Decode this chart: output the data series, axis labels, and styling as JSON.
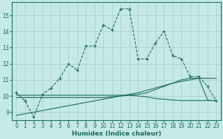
{
  "title": "",
  "xlabel": "Humidex (Indice chaleur)",
  "background_color": "#c5e8e8",
  "grid_color": "#aed4d4",
  "line_color": "#1a6b5a",
  "x_ticks": [
    0,
    1,
    2,
    3,
    4,
    5,
    6,
    7,
    8,
    9,
    10,
    11,
    12,
    13,
    14,
    15,
    16,
    17,
    18,
    19,
    20,
    21,
    22,
    23
  ],
  "y_ticks": [
    9,
    10,
    11,
    12,
    13,
    14,
    15
  ],
  "ylim": [
    8.5,
    15.8
  ],
  "xlim": [
    -0.5,
    23.5
  ],
  "series1_x": [
    0,
    1,
    2,
    3,
    4,
    5,
    6,
    7,
    8,
    9,
    10,
    11,
    12,
    13,
    14,
    15,
    16,
    17,
    18,
    19,
    20,
    21,
    22,
    23
  ],
  "series1_y": [
    10.2,
    9.7,
    8.7,
    10.1,
    10.5,
    11.1,
    12.0,
    11.6,
    13.1,
    13.1,
    14.4,
    14.1,
    15.4,
    15.4,
    12.3,
    12.3,
    13.3,
    14.0,
    12.5,
    12.3,
    11.2,
    11.2,
    10.6,
    9.7
  ],
  "series2_x": [
    0,
    1,
    2,
    3,
    4,
    5,
    6,
    7,
    8,
    9,
    10,
    11,
    12,
    13,
    14,
    15,
    16,
    17,
    18,
    19,
    20,
    21,
    22,
    23
  ],
  "series2_y": [
    10.05,
    10.05,
    10.05,
    10.05,
    10.05,
    10.05,
    10.05,
    10.05,
    10.05,
    10.05,
    10.05,
    10.05,
    10.05,
    10.05,
    10.0,
    9.95,
    9.85,
    9.8,
    9.75,
    9.72,
    9.72,
    9.72,
    9.72,
    9.72
  ],
  "series3_x": [
    0,
    1,
    2,
    3,
    4,
    5,
    6,
    7,
    8,
    9,
    10,
    11,
    12,
    13,
    14,
    15,
    16,
    17,
    18,
    19,
    20,
    21,
    22,
    23
  ],
  "series3_y": [
    9.9,
    9.9,
    9.9,
    9.9,
    9.9,
    9.9,
    9.9,
    9.9,
    9.9,
    9.9,
    9.9,
    9.95,
    10.0,
    10.05,
    10.1,
    10.2,
    10.4,
    10.6,
    10.8,
    11.0,
    11.1,
    11.1,
    11.1,
    11.1
  ],
  "series4_x": [
    0,
    1,
    2,
    3,
    4,
    5,
    6,
    7,
    8,
    9,
    10,
    11,
    12,
    13,
    14,
    15,
    16,
    17,
    18,
    19,
    20,
    21,
    22,
    23
  ],
  "series4_y": [
    8.8,
    8.9,
    9.0,
    9.1,
    9.2,
    9.3,
    9.4,
    9.5,
    9.6,
    9.7,
    9.8,
    9.9,
    10.0,
    10.1,
    10.2,
    10.35,
    10.5,
    10.65,
    10.8,
    10.9,
    11.0,
    11.1,
    9.75,
    9.7
  ]
}
